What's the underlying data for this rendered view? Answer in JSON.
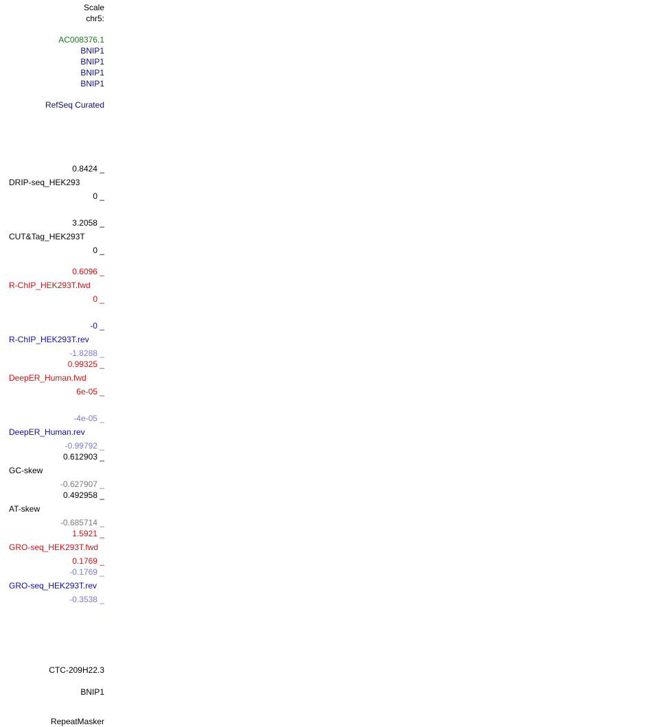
{
  "header": {
    "scale_label": "Scale",
    "chrom_label": "chr5:"
  },
  "gene_labels": {
    "items": [
      {
        "name": "AC008376.1",
        "color": "#1a7a1a"
      },
      {
        "name": "BNIP1",
        "color": "#0c0c78"
      },
      {
        "name": "BNIP1",
        "color": "#0c0c78"
      },
      {
        "name": "BNIP1",
        "color": "#0c0c78"
      },
      {
        "name": "BNIP1",
        "color": "#0c0c78"
      }
    ]
  },
  "refseq": {
    "label": "RefSeq Curated",
    "color": "#0c0c78"
  },
  "signal_tracks": {
    "drip": {
      "name": "DRIP-seq_HEK293",
      "max": "0.8424 _",
      "min": "0 _",
      "color": "#000000"
    },
    "cuttag": {
      "name": "CUT&Tag_HEK293T",
      "max": "3.2058 _",
      "min": "0 _",
      "color": "#000000"
    },
    "rchip_fwd": {
      "name": "R-ChIP_HEK293T.fwd",
      "max": "0.6096 _",
      "min": "0 _",
      "color": "#d01010"
    },
    "rchip_rev": {
      "name": "R-ChIP_HEK293T.rev",
      "max": "-0 _",
      "min": "-1.8288 _",
      "color": "#0c0cb0",
      "min_color": "#7a7ad8"
    },
    "deeper_fwd": {
      "name": "DeepER_Human.fwd",
      "max": "0.99325 _",
      "min": "6e-05 _",
      "color": "#d01010"
    },
    "deeper_rev": {
      "name": "DeepER_Human.rev",
      "max": "-4e-05 _",
      "min": "-0.99792 _",
      "color": "#0c0cb0",
      "min_color": "#7a7ad8",
      "max_color": "#7a7ad8"
    },
    "gc_skew": {
      "name": "GC-skew",
      "max": "0.612903 _",
      "min": "-0.627907 _",
      "color": "#000000",
      "min_color": "#7a7a7a"
    },
    "at_skew": {
      "name": "AT-skew",
      "max": "0.492958 _",
      "min": "-0.685714 _",
      "color": "#000000",
      "min_color": "#7a7a7a"
    },
    "gro_fwd": {
      "name": "GRO-seq_HEK293T.fwd",
      "max": "1.5921 _",
      "min": "0.1769 _",
      "color": "#d01010"
    },
    "gro_rev": {
      "name": "GRO-seq_HEK293T.rev",
      "max": "-0.1769 _",
      "min": "-0.3538 _",
      "color": "#0c0cb0",
      "min_color": "#7a7ad8",
      "max_color": "#7a7ad8"
    }
  },
  "bottom": {
    "ctc_label": "CTC-209H22.3",
    "bnip_label": "BNIP1",
    "repeatmasker_label": "RepeatMasker"
  }
}
